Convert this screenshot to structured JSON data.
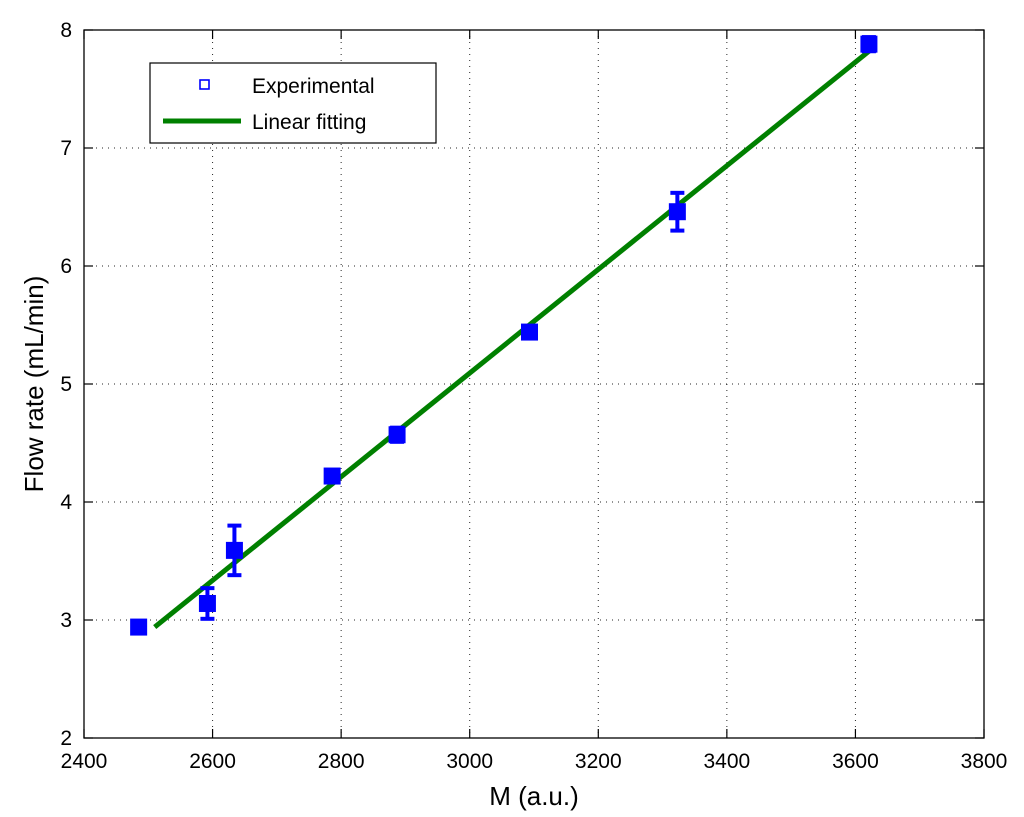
{
  "chart_data": {
    "type": "scatter",
    "xlabel": "M (a.u.)",
    "ylabel": "Flow rate (mL/min)",
    "xlim": [
      2400,
      3800
    ],
    "ylim": [
      2,
      8
    ],
    "xticks": [
      2400,
      2600,
      2800,
      3000,
      3200,
      3400,
      3600,
      3800
    ],
    "yticks": [
      2,
      3,
      4,
      5,
      6,
      7,
      8
    ],
    "grid": true,
    "legend_position": "top-left",
    "series": [
      {
        "name": "Experimental",
        "kind": "markers-with-error-bars",
        "marker": "square",
        "color": "#0000ff",
        "points": [
          {
            "x": 2485,
            "y": 2.94,
            "err": 0.03
          },
          {
            "x": 2592,
            "y": 3.14,
            "err": 0.13
          },
          {
            "x": 2634,
            "y": 3.59,
            "err": 0.21
          },
          {
            "x": 2786,
            "y": 4.22,
            "err": 0.04
          },
          {
            "x": 2887,
            "y": 4.57,
            "err": 0.06
          },
          {
            "x": 3093,
            "y": 5.44,
            "err": 0.04
          },
          {
            "x": 3323,
            "y": 6.46,
            "err": 0.16
          },
          {
            "x": 3621,
            "y": 7.88,
            "err": 0.06
          }
        ]
      },
      {
        "name": "Linear fitting",
        "kind": "line",
        "color": "#008000",
        "x": [
          2510,
          3630
        ],
        "y": [
          2.94,
          7.86
        ]
      }
    ]
  }
}
